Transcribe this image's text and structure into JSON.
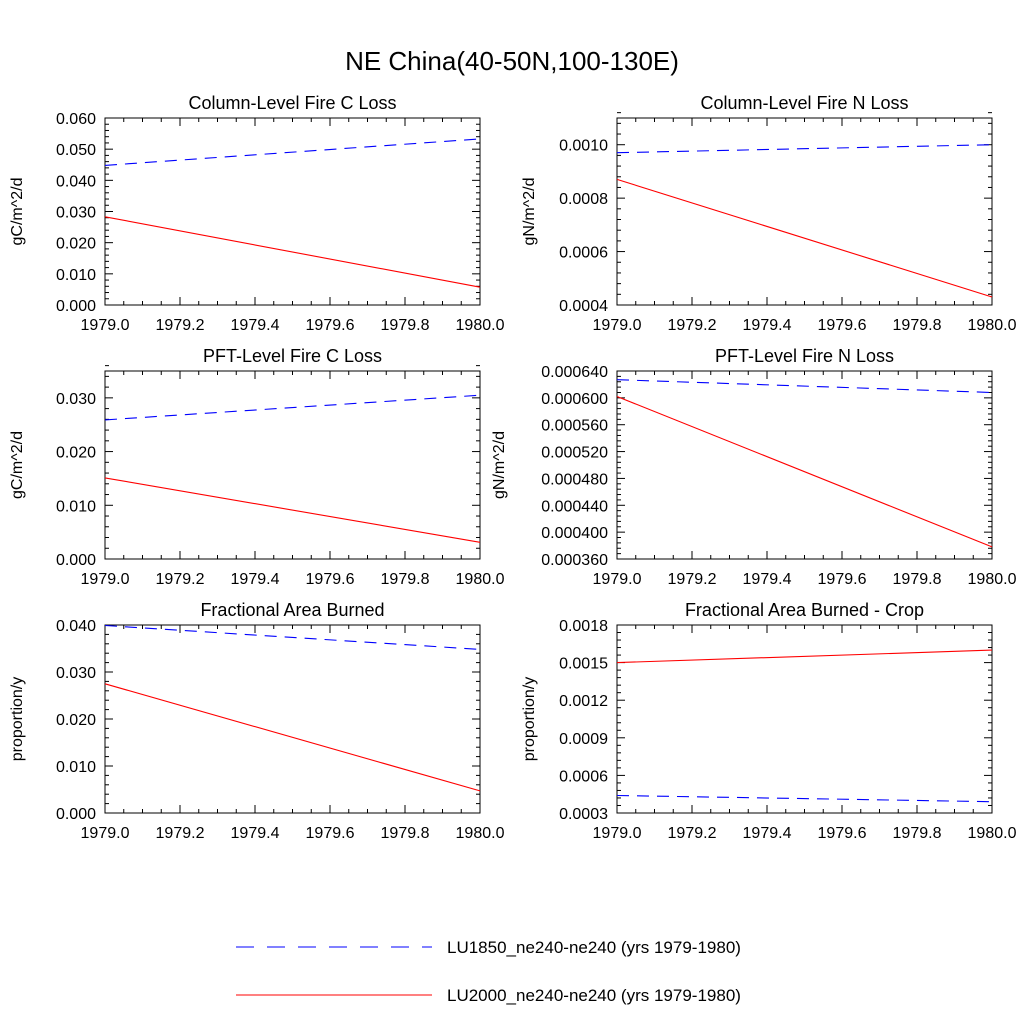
{
  "main_title": "NE China(40-50N,100-130E)",
  "legend": [
    {
      "name": "LU1850_ne240-ne240 (yrs 1979-1980)",
      "color": "#0000ff",
      "dash": "dashed"
    },
    {
      "name": "LU2000_ne240-ne240 (yrs 1979-1980)",
      "color": "#ff0000",
      "dash": "solid"
    }
  ],
  "chart_data": [
    {
      "type": "line",
      "title": "Column-Level Fire C Loss",
      "ylabel": "gC/m^2/d",
      "xlabel": "",
      "xlim": [
        1979.0,
        1980.0
      ],
      "ylim": [
        0.0,
        0.06
      ],
      "x_ticks": [
        "1979.0",
        "1979.2",
        "1979.4",
        "1979.6",
        "1979.8",
        "1980.0"
      ],
      "y_ticks": [
        0.0,
        0.01,
        0.02,
        0.03,
        0.04,
        0.05,
        0.06
      ],
      "y_tick_labels": [
        "0.000",
        "0.010",
        "0.020",
        "0.030",
        "0.040",
        "0.050",
        "0.060"
      ],
      "series": [
        {
          "x": [
            1979.0,
            1980.0
          ],
          "values": [
            0.0448,
            0.0533
          ],
          "color": "#0000ff",
          "dash": "dashed"
        },
        {
          "x": [
            1979.0,
            1980.0
          ],
          "values": [
            0.0283,
            0.0057
          ],
          "color": "#ff0000",
          "dash": "solid"
        }
      ]
    },
    {
      "type": "line",
      "title": "Column-Level Fire N Loss",
      "ylabel": "gN/m^2/d",
      "xlabel": "",
      "xlim": [
        1979.0,
        1980.0
      ],
      "ylim": [
        0.0004,
        0.0011
      ],
      "x_ticks": [
        "1979.0",
        "1979.2",
        "1979.4",
        "1979.6",
        "1979.8",
        "1980.0"
      ],
      "y_ticks": [
        0.0004,
        0.0006,
        0.0008,
        0.001
      ],
      "y_tick_labels": [
        "0.0004",
        "0.0006",
        "0.0008",
        "0.0010"
      ],
      "series": [
        {
          "x": [
            1979.0,
            1980.0
          ],
          "values": [
            0.00097,
            0.001
          ],
          "color": "#0000ff",
          "dash": "dashed"
        },
        {
          "x": [
            1979.0,
            1980.0
          ],
          "values": [
            0.00087,
            0.00043
          ],
          "color": "#ff0000",
          "dash": "solid"
        }
      ]
    },
    {
      "type": "line",
      "title": "PFT-Level Fire C Loss",
      "ylabel": "gC/m^2/d",
      "xlabel": "",
      "xlim": [
        1979.0,
        1980.0
      ],
      "ylim": [
        0.0,
        0.035
      ],
      "x_ticks": [
        "1979.0",
        "1979.2",
        "1979.4",
        "1979.6",
        "1979.8",
        "1980.0"
      ],
      "y_ticks": [
        0.0,
        0.01,
        0.02,
        0.03
      ],
      "y_tick_labels": [
        "0.000",
        "0.010",
        "0.020",
        "0.030"
      ],
      "series": [
        {
          "x": [
            1979.0,
            1980.0
          ],
          "values": [
            0.0259,
            0.0305
          ],
          "color": "#0000ff",
          "dash": "dashed"
        },
        {
          "x": [
            1979.0,
            1980.0
          ],
          "values": [
            0.0151,
            0.0031
          ],
          "color": "#ff0000",
          "dash": "solid"
        }
      ]
    },
    {
      "type": "line",
      "title": "PFT-Level Fire N Loss",
      "ylabel": "gN/m^2/d",
      "xlabel": "",
      "xlim": [
        1979.0,
        1980.0
      ],
      "ylim": [
        0.00036,
        0.00064
      ],
      "x_ticks": [
        "1979.0",
        "1979.2",
        "1979.4",
        "1979.6",
        "1979.8",
        "1980.0"
      ],
      "y_ticks": [
        0.00036,
        0.0004,
        0.00044,
        0.00048,
        0.00052,
        0.00056,
        0.0006,
        0.00064
      ],
      "y_tick_labels": [
        "0.000360",
        "0.000400",
        "0.000440",
        "0.000480",
        "0.000520",
        "0.000560",
        "0.000600",
        "0.000640"
      ],
      "series": [
        {
          "x": [
            1979.0,
            1980.0
          ],
          "values": [
            0.000627,
            0.000608
          ],
          "color": "#0000ff",
          "dash": "dashed"
        },
        {
          "x": [
            1979.0,
            1980.0
          ],
          "values": [
            0.000602,
            0.000378
          ],
          "color": "#ff0000",
          "dash": "solid"
        }
      ]
    },
    {
      "type": "line",
      "title": "Fractional Area Burned",
      "ylabel": "proportion/y",
      "xlabel": "",
      "xlim": [
        1979.0,
        1980.0
      ],
      "ylim": [
        0.0,
        0.04
      ],
      "x_ticks": [
        "1979.0",
        "1979.2",
        "1979.4",
        "1979.6",
        "1979.8",
        "1980.0"
      ],
      "y_ticks": [
        0.0,
        0.01,
        0.02,
        0.03,
        0.04
      ],
      "y_tick_labels": [
        "0.000",
        "0.010",
        "0.020",
        "0.030",
        "0.040"
      ],
      "series": [
        {
          "x": [
            1979.0,
            1980.0
          ],
          "values": [
            0.0399,
            0.0348
          ],
          "color": "#0000ff",
          "dash": "dashed"
        },
        {
          "x": [
            1979.0,
            1980.0
          ],
          "values": [
            0.0275,
            0.0047
          ],
          "color": "#ff0000",
          "dash": "solid"
        }
      ]
    },
    {
      "type": "line",
      "title": "Fractional Area Burned - Crop",
      "ylabel": "proportion/y",
      "xlabel": "",
      "xlim": [
        1979.0,
        1980.0
      ],
      "ylim": [
        0.0003,
        0.0018
      ],
      "x_ticks": [
        "1979.0",
        "1979.2",
        "1979.4",
        "1979.6",
        "1979.8",
        "1980.0"
      ],
      "y_ticks": [
        0.0003,
        0.0006,
        0.0009,
        0.0012,
        0.0015,
        0.0018
      ],
      "y_tick_labels": [
        "0.0003",
        "0.0006",
        "0.0009",
        "0.0012",
        "0.0015",
        "0.0018"
      ],
      "series": [
        {
          "x": [
            1979.0,
            1980.0
          ],
          "values": [
            0.00044,
            0.00039
          ],
          "color": "#0000ff",
          "dash": "dashed"
        },
        {
          "x": [
            1979.0,
            1980.0
          ],
          "values": [
            0.0015,
            0.0016
          ],
          "color": "#ff0000",
          "dash": "solid"
        }
      ]
    }
  ]
}
